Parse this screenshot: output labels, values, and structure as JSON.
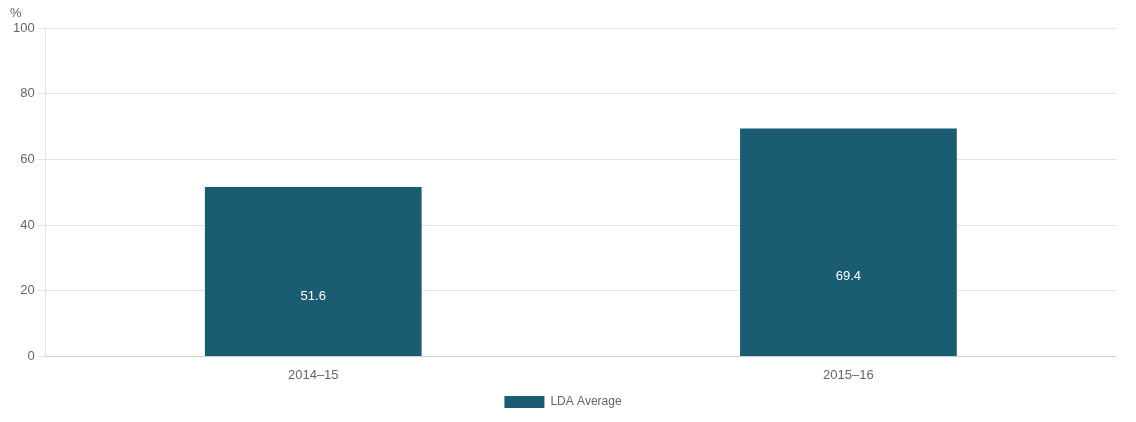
{
  "chart_data": {
    "type": "bar",
    "ylabel": "%",
    "categories": [
      "2014–15",
      "2015–16"
    ],
    "series": [
      {
        "name": "LDA Average",
        "color": "#1a5c72",
        "values": [
          51.6,
          69.4
        ]
      }
    ],
    "ylim": [
      0,
      100
    ],
    "yticks": [
      0,
      20,
      40,
      60,
      80,
      100
    ],
    "grid": true,
    "legend": "bottom",
    "data_labels": true
  }
}
